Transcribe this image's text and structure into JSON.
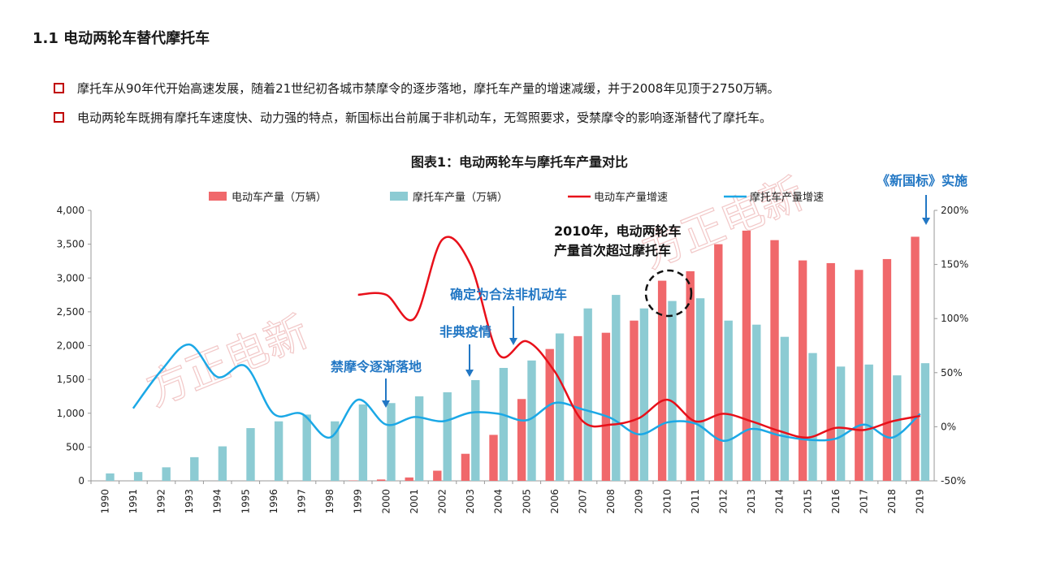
{
  "page": {
    "title": "1.1 电动两轮车替代摩托车",
    "bullets": [
      "摩托车从90年代开始高速发展，随着21世纪初各城市禁摩令的逐步落地，摩托车产量的增速减缓，并于2008年见顶于2750万辆。",
      "电动两轮车既拥有摩托车速度快、动力强的特点，新国标出台前属于非机动车，无驾照要求，受禁摩令的影响逐渐替代了摩托车。"
    ],
    "watermark": "方正电新"
  },
  "colors": {
    "ev_bar": "#f0686b",
    "moto_bar": "#8ccbd3",
    "ev_line": "#e8101a",
    "moto_line": "#1ba8e6",
    "annotation": "#2277c4",
    "bullet": "#c00000"
  },
  "chart_data": {
    "type": "bar",
    "title": "图表1：电动两轮车与摩托车产量对比",
    "categories": [
      "1990",
      "1991",
      "1992",
      "1993",
      "1994",
      "1995",
      "1996",
      "1997",
      "1998",
      "1999",
      "2000",
      "2001",
      "2002",
      "2003",
      "2004",
      "2005",
      "2006",
      "2007",
      "2008",
      "2009",
      "2010",
      "2011",
      "2012",
      "2013",
      "2014",
      "2015",
      "2016",
      "2017",
      "2018",
      "2019"
    ],
    "series": [
      {
        "name": "电动车产量（万辆）",
        "kind": "bar",
        "axis": "left",
        "values": [
          0,
          0,
          0,
          0,
          0,
          0,
          0,
          0,
          0,
          5,
          20,
          50,
          150,
          400,
          680,
          1210,
          1950,
          2140,
          2190,
          2370,
          2960,
          3100,
          3500,
          3700,
          3560,
          3260,
          3220,
          3120,
          3280,
          3610
        ]
      },
      {
        "name": "摩托车产量（万辆）",
        "kind": "bar",
        "axis": "left",
        "values": [
          110,
          130,
          200,
          350,
          510,
          780,
          880,
          980,
          880,
          1130,
          1150,
          1250,
          1310,
          1490,
          1670,
          1780,
          2180,
          2550,
          2750,
          2550,
          2660,
          2700,
          2370,
          2310,
          2130,
          1890,
          1690,
          1720,
          1560,
          1740
        ]
      },
      {
        "name": "电动车产量增速",
        "kind": "line",
        "axis": "right",
        "values": [
          null,
          null,
          null,
          null,
          null,
          null,
          null,
          null,
          null,
          122,
          122,
          100,
          173,
          150,
          67,
          79,
          51,
          5,
          2,
          8,
          25,
          5,
          12,
          5,
          -4,
          -10,
          -1,
          -3,
          5,
          10
        ]
      },
      {
        "name": "摩托车产量增速",
        "kind": "line",
        "axis": "right",
        "values": [
          null,
          17,
          52,
          76,
          46,
          56,
          12,
          12,
          -10,
          25,
          2,
          9,
          5,
          13,
          12,
          6,
          22,
          16,
          8,
          -7,
          4,
          3,
          -13,
          -2,
          -8,
          -12,
          -11,
          2,
          -10,
          12
        ]
      }
    ],
    "ylim": [
      0,
      4000
    ],
    "y_ticks": [
      "0",
      "500",
      "1,000",
      "1,500",
      "2,000",
      "2,500",
      "3,000",
      "3,500",
      "4,000"
    ],
    "y2lim": [
      -50,
      200
    ],
    "y2_ticks": [
      "-50%",
      "0%",
      "50%",
      "100%",
      "150%",
      "200%"
    ],
    "legend_position": "top",
    "grid": false,
    "annotations": [
      {
        "text": "禁摩令逐渐落地",
        "year": "2000"
      },
      {
        "text": "非典疫情",
        "year": "2003"
      },
      {
        "text": "确定为合法非机动车",
        "year": "2004"
      },
      {
        "text": "2010年，电动两轮车",
        "year": "2010"
      },
      {
        "text": "产量首次超过摩托车",
        "year": "2010"
      },
      {
        "text": "《新国标》实施",
        "year": "2019"
      }
    ]
  }
}
